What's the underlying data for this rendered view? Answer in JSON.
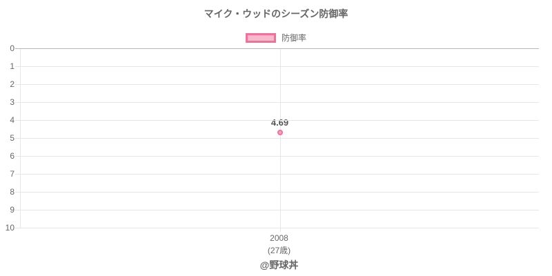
{
  "chart_data": {
    "type": "line",
    "title": "マイク・ウッドのシーズン防御率",
    "legend_position": "top",
    "legend": [
      {
        "label": "防御率"
      }
    ],
    "categories": [
      "2008"
    ],
    "category_sublabels": [
      "(27歳)"
    ],
    "series": [
      {
        "name": "防御率",
        "values": [
          4.69
        ]
      }
    ],
    "point_labels": [
      "4.69"
    ],
    "y_axis": {
      "min": 0,
      "max": 10,
      "inverted": true,
      "ticks": [
        "0",
        "1",
        "2",
        "3",
        "4",
        "5",
        "6",
        "7",
        "8",
        "9",
        "10"
      ]
    },
    "grid": true,
    "colors": {
      "point_border": "#f0719a",
      "point_fill": "#f5a3bd",
      "legend_fill": "#f8b9cc",
      "grid_line": "#e6e6e6",
      "zero_line": "#b5b5b5",
      "text": "#666666",
      "point_label_text": "#555555"
    },
    "attribution": "@野球丼"
  }
}
